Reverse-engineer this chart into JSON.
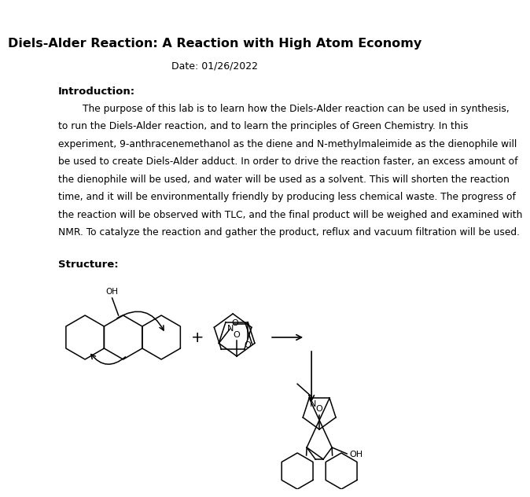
{
  "title": "Diels-Alder Reaction: A Reaction with High Atom Economy",
  "date_line": "Date: 01/26/2022",
  "section_header": "Introduction:",
  "intro_lines": [
    "        The purpose of this lab is to learn how the Diels-Alder reaction can be used in synthesis,",
    "to run the Diels-Alder reaction, and to learn the principles of Green Chemistry. In this",
    "experiment, 9-anthracenemethanol as the diene and N-methylmaleimide as the dienophile will",
    "be used to create Diels-Alder adduct. In order to drive the reaction faster, an excess amount of",
    "the dienophile will be used, and water will be used as a solvent. This will shorten the reaction",
    "time, and it will be environmentally friendly by producing less chemical waste. The progress of",
    "the reaction will be observed with TLC, and the final product will be weighed and examined with",
    "NMR. To catalyze the reaction and gather the product, reflux and vacuum filtration will be used."
  ],
  "structure_header": "Structure:",
  "bg_color": "#ffffff",
  "text_color": "#000000"
}
